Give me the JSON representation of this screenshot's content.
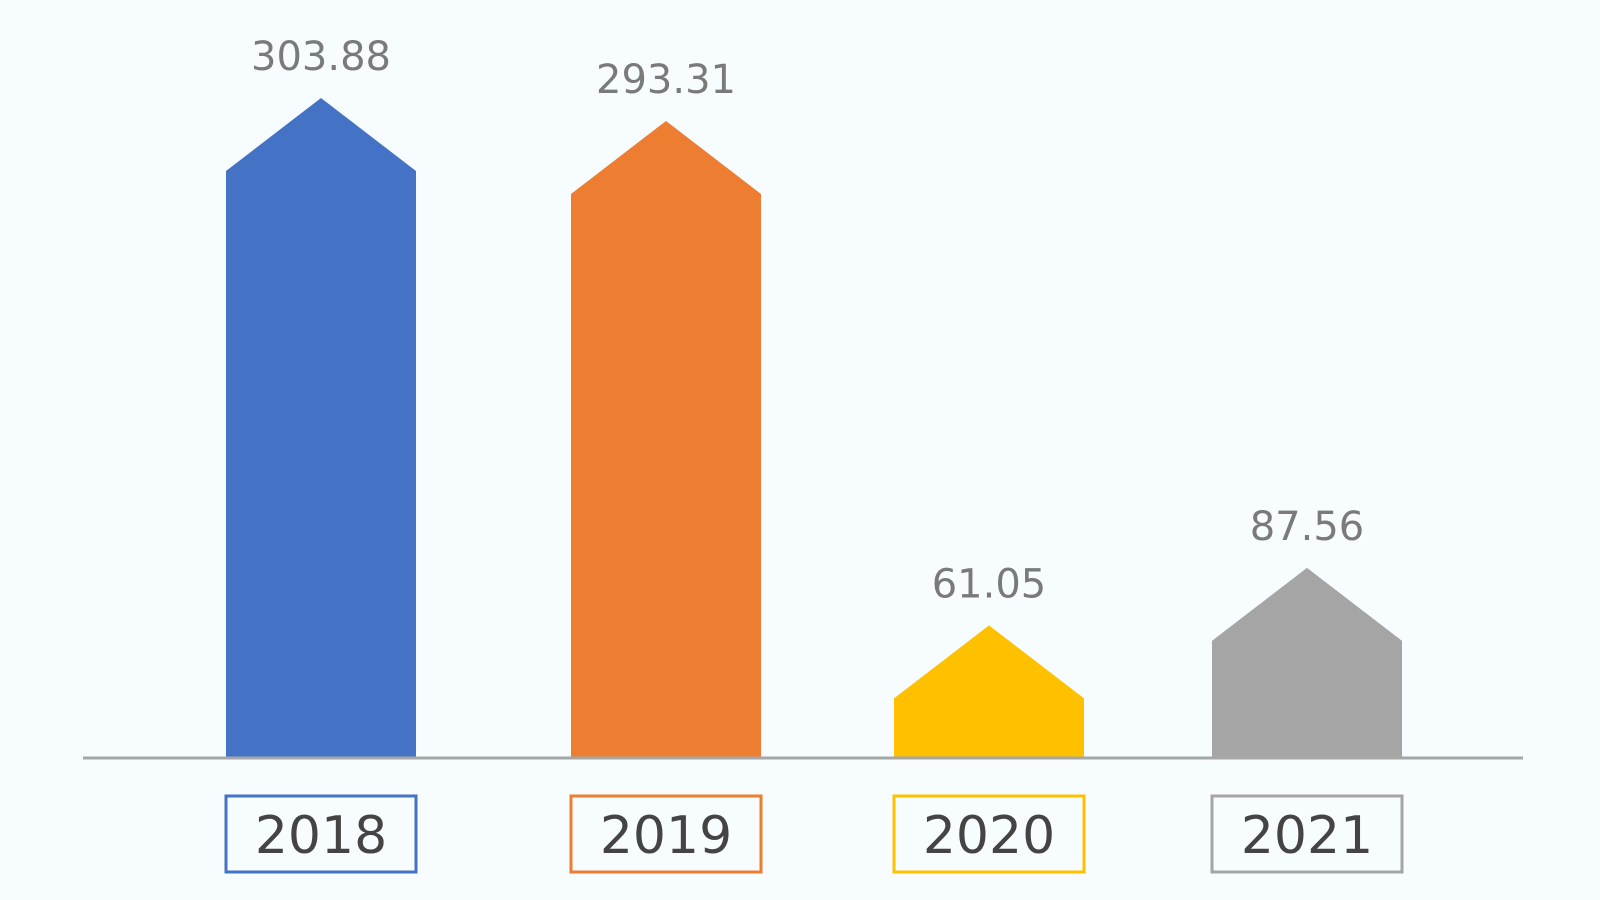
{
  "chart_data": {
    "type": "bar",
    "categories": [
      "2018",
      "2019",
      "2020",
      "2021"
    ],
    "values": [
      303.88,
      293.31,
      61.05,
      87.56
    ],
    "value_labels": [
      "303.88",
      "293.31",
      "61.05",
      "87.56"
    ],
    "colors": [
      "#4472c4",
      "#ed7d31",
      "#ffc000",
      "#a5a5a5"
    ],
    "title": "",
    "xlabel": "",
    "ylabel": "",
    "ylim": [
      0,
      303.88
    ],
    "grid": false,
    "legend": "none",
    "bar_shape": "arrow-up"
  }
}
